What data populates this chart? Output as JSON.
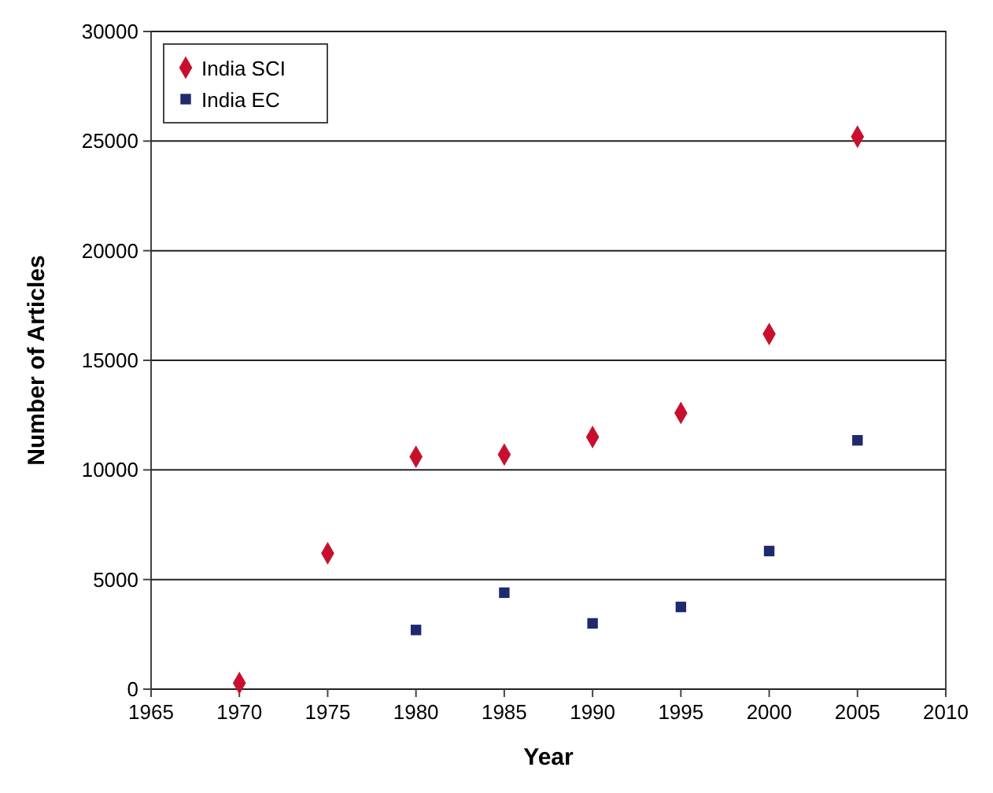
{
  "chart_data": {
    "type": "scatter",
    "xlabel": "Year",
    "ylabel": "Number of Articles",
    "xlim": [
      1965,
      2010
    ],
    "xticks": [
      1965,
      1970,
      1975,
      1980,
      1985,
      1990,
      1995,
      2000,
      2005,
      2010
    ],
    "ylim": [
      0,
      30000
    ],
    "yticks": [
      0,
      5000,
      10000,
      15000,
      20000,
      25000,
      30000
    ],
    "grid": "y",
    "legend": "top left",
    "series": [
      {
        "name": "India SCI",
        "color": "#c8102e",
        "marker": "diamond",
        "x": [
          1970,
          1975,
          1980,
          1985,
          1990,
          1995,
          2000,
          2005
        ],
        "values": [
          280,
          6200,
          10600,
          10700,
          11500,
          12600,
          16200,
          25200
        ]
      },
      {
        "name": "India EC",
        "color": "#1f2a6e",
        "marker": "square",
        "x": [
          1980,
          1985,
          1990,
          1995,
          2000,
          2005
        ],
        "values": [
          2700,
          4400,
          3000,
          3750,
          6300,
          11350
        ]
      }
    ]
  }
}
